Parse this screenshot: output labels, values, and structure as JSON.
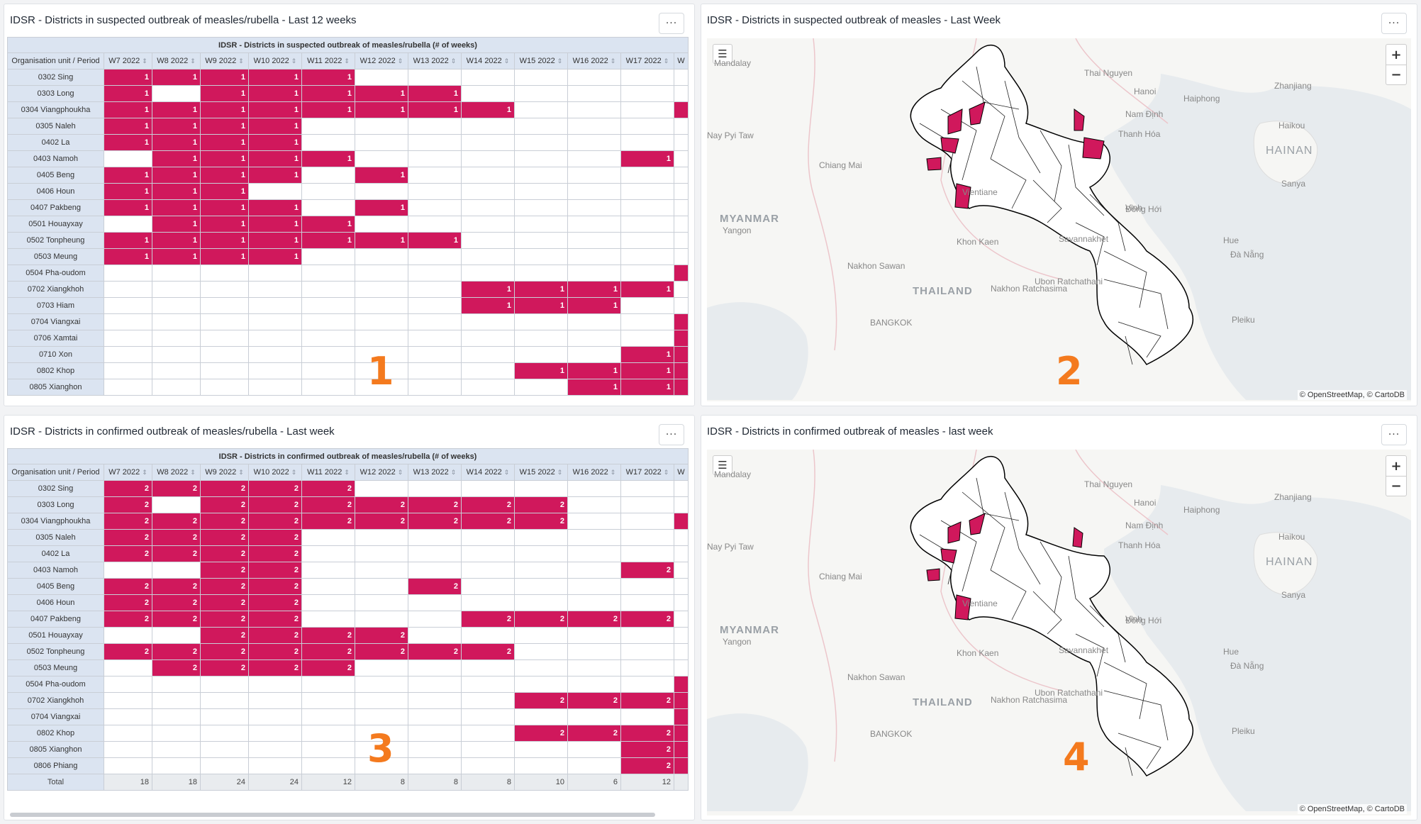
{
  "panel1": {
    "title": "IDSR - Districts in suspected outbreak of measles/rubella - Last 12 weeks",
    "menu": "···",
    "table_header": "IDSR - Districts in suspected outbreak of measles/rubella (# of weeks)",
    "corner": "Organisation unit / Period",
    "columns": [
      "W7 2022",
      "W8 2022",
      "W9 2022",
      "W10 2022",
      "W11 2022",
      "W12 2022",
      "W13 2022",
      "W14 2022",
      "W15 2022",
      "W16 2022",
      "W17 2022"
    ],
    "rows": [
      {
        "name": "0302 Sing",
        "cells": [
          "1",
          "1",
          "1",
          "1",
          "1",
          "",
          "",
          "",
          "",
          "",
          ""
        ],
        "edge": false
      },
      {
        "name": "0303 Long",
        "cells": [
          "1",
          "",
          "1",
          "1",
          "1",
          "1",
          "1",
          "",
          "",
          "",
          ""
        ],
        "edge": false
      },
      {
        "name": "0304 Viangphoukha",
        "cells": [
          "1",
          "1",
          "1",
          "1",
          "1",
          "1",
          "1",
          "1",
          "",
          "",
          ""
        ],
        "edge": true
      },
      {
        "name": "0305 Naleh",
        "cells": [
          "1",
          "1",
          "1",
          "1",
          "",
          "",
          "",
          "",
          "",
          "",
          ""
        ],
        "edge": false
      },
      {
        "name": "0402 La",
        "cells": [
          "1",
          "1",
          "1",
          "1",
          "",
          "",
          "",
          "",
          "",
          "",
          ""
        ],
        "edge": false
      },
      {
        "name": "0403 Namoh",
        "cells": [
          "",
          "1",
          "1",
          "1",
          "1",
          "",
          "",
          "",
          "",
          "",
          "1"
        ],
        "edge": false
      },
      {
        "name": "0405 Beng",
        "cells": [
          "1",
          "1",
          "1",
          "1",
          "",
          "1",
          "",
          "",
          "",
          "",
          ""
        ],
        "edge": false
      },
      {
        "name": "0406 Houn",
        "cells": [
          "1",
          "1",
          "1",
          "",
          "",
          "",
          "",
          "",
          "",
          "",
          ""
        ],
        "edge": false
      },
      {
        "name": "0407 Pakbeng",
        "cells": [
          "1",
          "1",
          "1",
          "1",
          "",
          "1",
          "",
          "",
          "",
          "",
          ""
        ],
        "edge": false
      },
      {
        "name": "0501 Houayxay",
        "cells": [
          "",
          "1",
          "1",
          "1",
          "1",
          "",
          "",
          "",
          "",
          "",
          ""
        ],
        "edge": false
      },
      {
        "name": "0502 Tonpheung",
        "cells": [
          "1",
          "1",
          "1",
          "1",
          "1",
          "1",
          "1",
          "",
          "",
          "",
          ""
        ],
        "edge": false
      },
      {
        "name": "0503 Meung",
        "cells": [
          "1",
          "1",
          "1",
          "1",
          "",
          "",
          "",
          "",
          "",
          "",
          ""
        ],
        "edge": false
      },
      {
        "name": "0504 Pha-oudom",
        "cells": [
          "",
          "",
          "",
          "",
          "",
          "",
          "",
          "",
          "",
          "",
          ""
        ],
        "edge": true
      },
      {
        "name": "0702 Xiangkhoh",
        "cells": [
          "",
          "",
          "",
          "",
          "",
          "",
          "",
          "1",
          "1",
          "1",
          "1"
        ],
        "edge": false
      },
      {
        "name": "0703 Hiam",
        "cells": [
          "",
          "",
          "",
          "",
          "",
          "",
          "",
          "1",
          "1",
          "1",
          ""
        ],
        "edge": false
      },
      {
        "name": "0704 Viangxai",
        "cells": [
          "",
          "",
          "",
          "",
          "",
          "",
          "",
          "",
          "",
          "",
          ""
        ],
        "edge": true
      },
      {
        "name": "0706 Xamtai",
        "cells": [
          "",
          "",
          "",
          "",
          "",
          "",
          "",
          "",
          "",
          "",
          ""
        ],
        "edge": true
      },
      {
        "name": "0710 Xon",
        "cells": [
          "",
          "",
          "",
          "",
          "",
          "",
          "",
          "",
          "",
          "",
          "1"
        ],
        "edge": true
      },
      {
        "name": "0802 Khop",
        "cells": [
          "",
          "",
          "",
          "",
          "",
          "",
          "",
          "",
          "1",
          "1",
          "1"
        ],
        "edge": true
      },
      {
        "name": "0805 Xianghon",
        "cells": [
          "",
          "",
          "",
          "",
          "",
          "",
          "",
          "",
          "",
          "1",
          "1"
        ],
        "edge": true
      }
    ],
    "badge": "1"
  },
  "panel2": {
    "title": "IDSR - Districts in suspected outbreak of measles - Last Week",
    "menu": "···",
    "zoom_in": "+",
    "zoom_out": "−",
    "legend_icon": "list-icon",
    "attribution": "© OpenStreetMap, © CartoDB",
    "badge": "2"
  },
  "panel3": {
    "title": "IDSR - Districts in confirmed outbreak of measles/rubella - Last week",
    "menu": "···",
    "table_header": "IDSR - Districts in confirmed outbreak of measles/rubella (# of weeks)",
    "corner": "Organisation unit / Period",
    "columns": [
      "W7 2022",
      "W8 2022",
      "W9 2022",
      "W10 2022",
      "W11 2022",
      "W12 2022",
      "W13 2022",
      "W14 2022",
      "W15 2022",
      "W16 2022",
      "W17 2022"
    ],
    "rows": [
      {
        "name": "0302 Sing",
        "cells": [
          "2",
          "2",
          "2",
          "2",
          "2",
          "",
          "",
          "",
          "",
          "",
          ""
        ],
        "edge": false
      },
      {
        "name": "0303 Long",
        "cells": [
          "2",
          "",
          "2",
          "2",
          "2",
          "2",
          "2",
          "2",
          "2",
          "",
          ""
        ],
        "edge": false
      },
      {
        "name": "0304 Viangphoukha",
        "cells": [
          "2",
          "2",
          "2",
          "2",
          "2",
          "2",
          "2",
          "2",
          "2",
          "",
          ""
        ],
        "edge": true
      },
      {
        "name": "0305 Naleh",
        "cells": [
          "2",
          "2",
          "2",
          "2",
          "",
          "",
          "",
          "",
          "",
          "",
          ""
        ],
        "edge": false
      },
      {
        "name": "0402 La",
        "cells": [
          "2",
          "2",
          "2",
          "2",
          "",
          "",
          "",
          "",
          "",
          "",
          ""
        ],
        "edge": false
      },
      {
        "name": "0403 Namoh",
        "cells": [
          "",
          "",
          "2",
          "2",
          "",
          "",
          "",
          "",
          "",
          "",
          "2"
        ],
        "edge": false
      },
      {
        "name": "0405 Beng",
        "cells": [
          "2",
          "2",
          "2",
          "2",
          "",
          "",
          "2",
          "",
          "",
          "",
          ""
        ],
        "edge": false
      },
      {
        "name": "0406 Houn",
        "cells": [
          "2",
          "2",
          "2",
          "2",
          "",
          "",
          "",
          "",
          "",
          "",
          ""
        ],
        "edge": false
      },
      {
        "name": "0407 Pakbeng",
        "cells": [
          "2",
          "2",
          "2",
          "2",
          "",
          "",
          "",
          "2",
          "2",
          "2",
          "2"
        ],
        "edge": false
      },
      {
        "name": "0501 Houayxay",
        "cells": [
          "",
          "",
          "2",
          "2",
          "2",
          "2",
          "",
          "",
          "",
          "",
          ""
        ],
        "edge": false
      },
      {
        "name": "0502 Tonpheung",
        "cells": [
          "2",
          "2",
          "2",
          "2",
          "2",
          "2",
          "2",
          "2",
          "",
          "",
          ""
        ],
        "edge": false
      },
      {
        "name": "0503 Meung",
        "cells": [
          "",
          "2",
          "2",
          "2",
          "2",
          "",
          "",
          "",
          "",
          "",
          ""
        ],
        "edge": false
      },
      {
        "name": "0504 Pha-oudom",
        "cells": [
          "",
          "",
          "",
          "",
          "",
          "",
          "",
          "",
          "",
          "",
          ""
        ],
        "edge": true
      },
      {
        "name": "0702 Xiangkhoh",
        "cells": [
          "",
          "",
          "",
          "",
          "",
          "",
          "",
          "",
          "2",
          "2",
          "2"
        ],
        "edge": true
      },
      {
        "name": "0704 Viangxai",
        "cells": [
          "",
          "",
          "",
          "",
          "",
          "",
          "",
          "",
          "",
          "",
          ""
        ],
        "edge": true
      },
      {
        "name": "0802 Khop",
        "cells": [
          "",
          "",
          "",
          "",
          "",
          "",
          "",
          "",
          "2",
          "2",
          "2"
        ],
        "edge": true
      },
      {
        "name": "0805 Xianghon",
        "cells": [
          "",
          "",
          "",
          "",
          "",
          "",
          "",
          "",
          "",
          "",
          "2"
        ],
        "edge": true
      },
      {
        "name": "0806 Phiang",
        "cells": [
          "",
          "",
          "",
          "",
          "",
          "",
          "",
          "",
          "",
          "",
          "2"
        ],
        "edge": true
      }
    ],
    "total_label": "Total",
    "totals": [
      "18",
      "18",
      "24",
      "24",
      "12",
      "8",
      "8",
      "8",
      "10",
      "6",
      "12"
    ],
    "badge": "3"
  },
  "panel4": {
    "title": "IDSR - Districts in confirmed outbreak of measles - last week",
    "menu": "···",
    "zoom_in": "+",
    "zoom_out": "−",
    "legend_icon": "list-icon",
    "attribution": "© OpenStreetMap, © CartoDB",
    "badge": "4"
  },
  "map_labels": [
    {
      "text": "Mandalay",
      "cls": ""
    },
    {
      "text": "Thai Nguyen",
      "cls": ""
    },
    {
      "text": "Zhanjiang",
      "cls": ""
    },
    {
      "text": "Hanoi",
      "cls": ""
    },
    {
      "text": "Haiphong",
      "cls": ""
    },
    {
      "text": "Nam Định",
      "cls": ""
    },
    {
      "text": "Haikou",
      "cls": ""
    },
    {
      "text": "Thanh Hóa",
      "cls": ""
    },
    {
      "text": "Nay Pyi Taw",
      "cls": ""
    },
    {
      "text": "HAINAN",
      "cls": "big"
    },
    {
      "text": "Chiang Mai",
      "cls": ""
    },
    {
      "text": "Sanya",
      "cls": ""
    },
    {
      "text": "Vinh",
      "cls": ""
    },
    {
      "text": "MYANMAR",
      "cls": "country"
    },
    {
      "text": "Yangon",
      "cls": ""
    },
    {
      "text": "Vientiane",
      "cls": ""
    },
    {
      "text": "Đồng Hới",
      "cls": ""
    },
    {
      "text": "Khon Kaen",
      "cls": ""
    },
    {
      "text": "Savannakhet",
      "cls": ""
    },
    {
      "text": "Hue",
      "cls": ""
    },
    {
      "text": "Đà Nẵng",
      "cls": ""
    },
    {
      "text": "Nakhon Sawan",
      "cls": ""
    },
    {
      "text": "Ubon Ratchathani",
      "cls": ""
    },
    {
      "text": "THAILAND",
      "cls": "country"
    },
    {
      "text": "Nakhon Ratchasima",
      "cls": ""
    },
    {
      "text": "Pleiku",
      "cls": ""
    },
    {
      "text": "BANGKOK",
      "cls": ""
    }
  ],
  "colors": {
    "outbreak": "#d0185c",
    "header_bg": "#dbe4f1",
    "badge": "#f47a1e"
  }
}
